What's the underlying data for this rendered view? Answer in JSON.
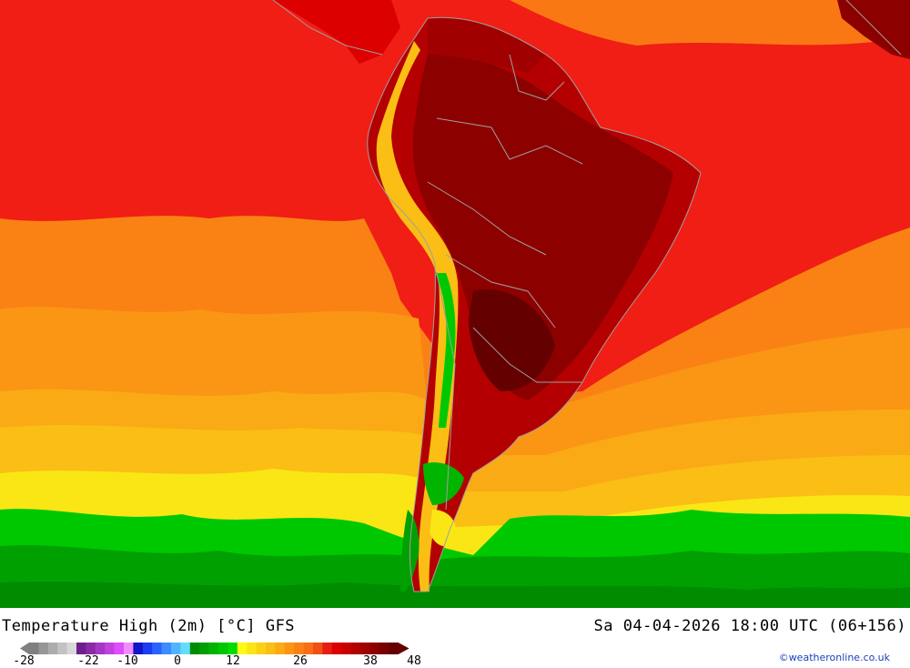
{
  "title": "Temperature High (2m) [°C] GFS",
  "datetime": "Sa 04-04-2026 18:00 UTC (06+156)",
  "credit": "©weatheronline.co.uk",
  "legend": {
    "ticks": [
      "-28",
      "-22",
      "-10",
      "0",
      "12",
      "26",
      "38",
      "48"
    ],
    "colors": [
      "#808080",
      "#969696",
      "#acacac",
      "#c2c2c2",
      "#d8d8d8",
      "#6e1e8c",
      "#8a2aa8",
      "#a636c4",
      "#c242e0",
      "#de4efc",
      "#f08cff",
      "#1414c8",
      "#1e3cf0",
      "#2864ff",
      "#3c8cff",
      "#50b4ff",
      "#64dcff",
      "#008c00",
      "#00a000",
      "#00b400",
      "#00c800",
      "#00dc00",
      "#fafa14",
      "#fae614",
      "#fad214",
      "#fabe14",
      "#faaa14",
      "#fa9614",
      "#fa8214",
      "#fa6e14",
      "#f05014",
      "#e61e14",
      "#dc0000",
      "#c80000",
      "#b40000",
      "#a00000",
      "#8c0000",
      "#780000",
      "#640000"
    ]
  },
  "map": {
    "region": "South America",
    "colors": {
      "ocean_green": "#00b400",
      "ocean_yellow": "#fae614",
      "ocean_orange": "#fa9614",
      "ocean_red": "#e61e14",
      "land_hot": "#a00000",
      "land_very_hot": "#780000",
      "border": "#a0a0a0"
    }
  }
}
